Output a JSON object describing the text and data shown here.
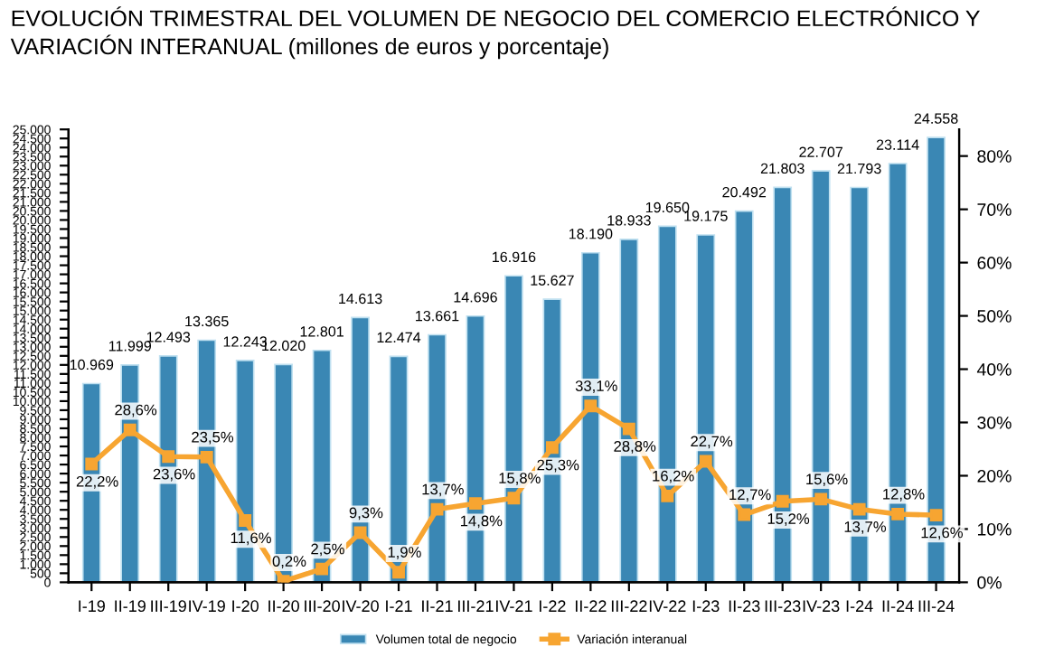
{
  "chart_data": {
    "type": "bar",
    "title": "EVOLUCIÓN TRIMESTRAL DEL VOLUMEN DE NEGOCIO DEL COMERCIO ELECTRÓNICO Y VARIACIÓN INTERANUAL (millones de euros y porcentaje)",
    "categories": [
      "I-19",
      "II-19",
      "III-19",
      "IV-19",
      "I-20",
      "II-20",
      "III-20",
      "IV-20",
      "I-21",
      "II-21",
      "III-21",
      "IV-21",
      "I-22",
      "II-22",
      "III-22",
      "IV-22",
      "I-23",
      "II-23",
      "III-23",
      "IV-23",
      "I-24",
      "II-24",
      "III-24"
    ],
    "series": [
      {
        "name": "Volumen total de negocio",
        "color": "#3a87b4",
        "values": [
          10969,
          11999,
          12493,
          13365,
          12243,
          12020,
          12801,
          14613,
          12474,
          13661,
          14696,
          16916,
          15627,
          18190,
          18933,
          19650,
          19175,
          20492,
          21803,
          22707,
          21793,
          23114,
          24558
        ],
        "value_labels": [
          "10.969",
          "11.999",
          "12.493",
          "13.365",
          "12.243",
          "12.020",
          "12.801",
          "14.613",
          "12.474",
          "13.661",
          "14.696",
          "16.916",
          "15.627",
          "18.190",
          "18.933",
          "19.650",
          "19.175",
          "20.492",
          "21.803",
          "22.707",
          "21.793",
          "23.114",
          "24.558"
        ]
      },
      {
        "name": "Variación interanual",
        "type": "line",
        "axis": "y2",
        "color": "#f7a531",
        "marker": "square",
        "line_style": "solid",
        "values": [
          22.2,
          28.6,
          23.6,
          23.5,
          11.6,
          0.2,
          2.5,
          9.3,
          1.9,
          13.7,
          14.8,
          15.8,
          25.3,
          33.1,
          28.8,
          16.2,
          22.7,
          12.7,
          15.2,
          15.6,
          13.7,
          12.8,
          12.6
        ],
        "value_labels": [
          "22,2%",
          "28,6%",
          "23,6%",
          "23,5%",
          "11,6%",
          "0,2%",
          "2,5%",
          "9,3%",
          "1,9%",
          "13,7%",
          "14,8%",
          "15,8%",
          "25,3%",
          "33,1%",
          "28,8%",
          "16,2%",
          "22,7%",
          "12,7%",
          "15,2%",
          "15,6%",
          "13,7%",
          "12,8%",
          "12,6%"
        ]
      }
    ],
    "ylim": [
      0,
      25000
    ],
    "yticks": [
      0,
      500,
      {
        "value": 1000,
        "label": "1.000"
      },
      {
        "value": 1500,
        "label": "1.500"
      },
      {
        "value": 2000,
        "label": "2.000"
      },
      {
        "value": 2500,
        "label": "2.500"
      },
      {
        "value": 3000,
        "label": "3.000"
      },
      {
        "value": 3500,
        "label": "3.500"
      },
      {
        "value": 4000,
        "label": "4.000"
      },
      {
        "value": 4500,
        "label": "4.500"
      },
      {
        "value": 5000,
        "label": "5.000"
      },
      {
        "value": 5500,
        "label": "5.500"
      },
      {
        "value": 6000,
        "label": "6.000"
      },
      {
        "value": 6500,
        "label": "6.500"
      },
      {
        "value": 7000,
        "label": "7.000"
      },
      {
        "value": 7500,
        "label": "7.500"
      },
      {
        "value": 8000,
        "label": "8.000"
      },
      {
        "value": 8500,
        "label": "8.500"
      },
      {
        "value": 9000,
        "label": "9.000"
      },
      {
        "value": 9500,
        "label": "9.500"
      },
      {
        "value": 10000,
        "label": "10.000"
      },
      {
        "value": 10500,
        "label": "10.500"
      },
      {
        "value": 11000,
        "label": "11.000"
      },
      {
        "value": 11500,
        "label": "11.500"
      },
      {
        "value": 12000,
        "label": "12.000"
      },
      {
        "value": 12500,
        "label": "12.500"
      },
      {
        "value": 13000,
        "label": "13.000"
      },
      {
        "value": 13500,
        "label": "13.500"
      },
      {
        "value": 14000,
        "label": "14.000"
      },
      {
        "value": 14500,
        "label": "14.500"
      },
      {
        "value": 15000,
        "label": "15.000"
      },
      {
        "value": 15500,
        "label": "15.500"
      },
      {
        "value": 16000,
        "label": "16.000"
      },
      {
        "value": 16500,
        "label": "16.500"
      },
      {
        "value": 17000,
        "label": "17.000"
      },
      {
        "value": 17500,
        "label": "17.500"
      },
      {
        "value": 18000,
        "label": "18.000"
      },
      {
        "value": 18500,
        "label": "18.500"
      },
      {
        "value": 19000,
        "label": "19.000"
      },
      {
        "value": 19500,
        "label": "19.500"
      },
      {
        "value": 20000,
        "label": "20.000"
      },
      {
        "value": 20500,
        "label": "20.500"
      },
      {
        "value": 21000,
        "label": "21.000"
      },
      {
        "value": 21500,
        "label": "21.500"
      },
      {
        "value": 22000,
        "label": "22.000"
      },
      {
        "value": 22500,
        "label": "22.500"
      },
      {
        "value": 23000,
        "label": "23.000"
      },
      {
        "value": 23500,
        "label": "23.500"
      },
      {
        "value": 24000,
        "label": "24.000"
      },
      {
        "value": 24500,
        "label": "24.500"
      },
      {
        "value": 25000,
        "label": "25.000"
      }
    ],
    "y2lim": [
      0,
      85
    ],
    "y2ticks": [
      {
        "value": 0,
        "label": "0%"
      },
      {
        "value": 10,
        "label": "10%"
      },
      {
        "value": 20,
        "label": "20%"
      },
      {
        "value": 30,
        "label": "30%"
      },
      {
        "value": 40,
        "label": "40%"
      },
      {
        "value": 50,
        "label": "50%"
      },
      {
        "value": 60,
        "label": "60%"
      },
      {
        "value": 70,
        "label": "70%"
      },
      {
        "value": 80,
        "label": "80%"
      }
    ],
    "grid": false,
    "legend": "bottom"
  }
}
